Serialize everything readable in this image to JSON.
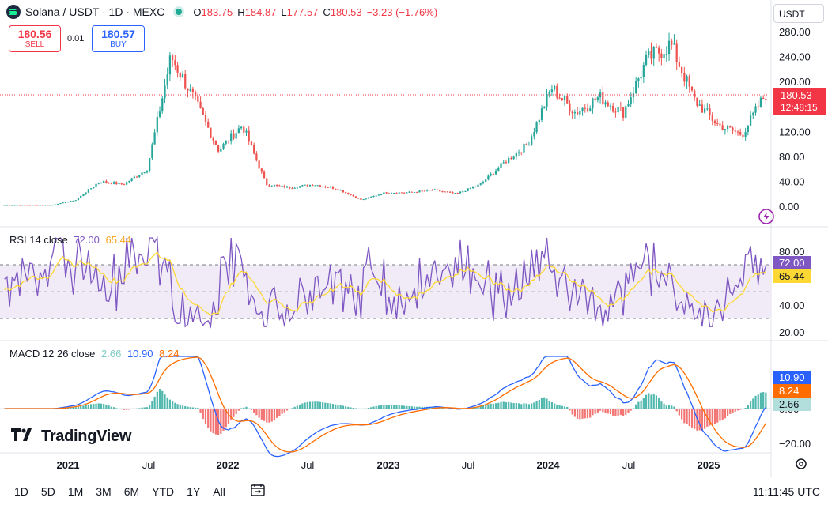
{
  "header": {
    "symbol_title": "Solana / USDT · 1D · MEXC",
    "ohlc": [
      {
        "key": "O",
        "value": "183.75"
      },
      {
        "key": "H",
        "value": "184.87"
      },
      {
        "key": "L",
        "value": "177.57"
      },
      {
        "key": "C",
        "value": "180.53"
      }
    ],
    "change": "−3.23 (−1.76%)",
    "currency_button": "USDT",
    "colors": {
      "down": "#f23645",
      "up": "#22ab94",
      "buy": "#2962ff"
    }
  },
  "trade": {
    "sell_price": "180.56",
    "sell_label": "SELL",
    "spread": "0.01",
    "buy_price": "180.57",
    "buy_label": "BUY"
  },
  "price_axis": {
    "ticks": [
      "280.00",
      "240.00",
      "200.00",
      "160.00",
      "120.00",
      "80.00",
      "40.00",
      "0.00"
    ],
    "current_price": "180.53",
    "countdown": "12:48:15"
  },
  "rsi": {
    "label": "RSI 14 close",
    "value": "72.00",
    "ma_value": "65.44",
    "ticks": [
      "80.00",
      "60.00",
      "40.00",
      "20.00"
    ],
    "colors": {
      "rsi": "#7e57c2",
      "ma": "#fdd835",
      "band": "#ede7f6"
    }
  },
  "macd": {
    "label": "MACD 12 26 close",
    "hist_value": "2.66",
    "macd_value": "10.90",
    "signal_value": "8.24",
    "ticks": [
      "20.00",
      "0.00",
      "−20.00"
    ],
    "colors": {
      "macd": "#2962ff",
      "signal": "#ff6d00",
      "hist_up": "#26a69a",
      "hist_down": "#ef5350",
      "hist_label": "#b2dfdb"
    }
  },
  "time_axis": {
    "labels": [
      {
        "text": "2021",
        "bold": true
      },
      {
        "text": "Jul",
        "bold": false
      },
      {
        "text": "2022",
        "bold": true
      },
      {
        "text": "Jul",
        "bold": false
      },
      {
        "text": "2023",
        "bold": true
      },
      {
        "text": "Jul",
        "bold": false
      },
      {
        "text": "2024",
        "bold": true
      },
      {
        "text": "Jul",
        "bold": false
      },
      {
        "text": "2025",
        "bold": true
      }
    ]
  },
  "bottom_bar": {
    "ranges": [
      "1D",
      "5D",
      "1M",
      "3M",
      "6M",
      "YTD",
      "1Y",
      "All"
    ],
    "clock": "11:11:45 UTC"
  },
  "branding": {
    "logo_text": "TradingView"
  },
  "chart_data": {
    "type": "line",
    "x": [
      "2020-10",
      "2020-12",
      "2021-02",
      "2021-04",
      "2021-06",
      "2021-08",
      "2021-09",
      "2021-11",
      "2022-01",
      "2022-03",
      "2022-04",
      "2022-06",
      "2022-08",
      "2022-10",
      "2022-11",
      "2023-01",
      "2023-03",
      "2023-05",
      "2023-07",
      "2023-09",
      "2023-10",
      "2023-12",
      "2024-02",
      "2024-03",
      "2024-05",
      "2024-07",
      "2024-09",
      "2024-11",
      "2025-01",
      "2025-02",
      "2025-03",
      "2025-04",
      "2025-05"
    ],
    "series": [
      {
        "values": [
          2,
          2,
          2,
          10,
          40,
          35,
          60,
          240,
          170,
          90,
          130,
          35,
          30,
          35,
          28,
          10,
          22,
          22,
          26,
          20,
          35,
          70,
          100,
          190,
          150,
          175,
          150,
          235,
          260,
          170,
          130,
          115,
          180.53
        ]
      }
    ],
    "ylim": [
      -20,
      295
    ]
  }
}
